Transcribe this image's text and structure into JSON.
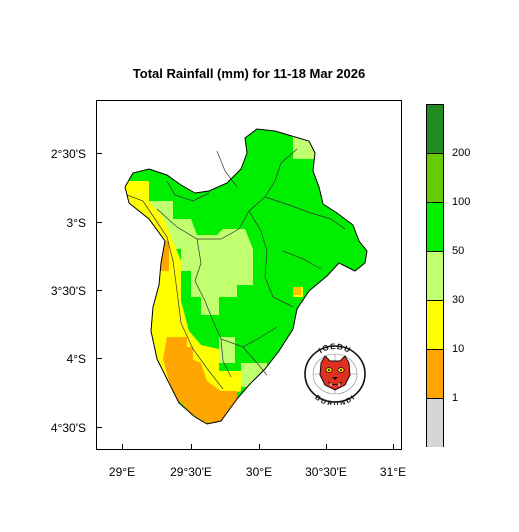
{
  "title": "Total Rainfall (mm) for 11-18 Mar 2026",
  "x_axis": {
    "ticks": [
      {
        "value": 29.0,
        "label": "29°E"
      },
      {
        "value": 29.5,
        "label": "29°30'E"
      },
      {
        "value": 30.0,
        "label": "30°E"
      },
      {
        "value": 30.5,
        "label": "30°30'E"
      },
      {
        "value": 31.0,
        "label": "31°E"
      }
    ]
  },
  "y_axis": {
    "ticks": [
      {
        "value": -2.5,
        "label": "2°30'S"
      },
      {
        "value": -3.0,
        "label": "3°S"
      },
      {
        "value": -3.5,
        "label": "3°30'S"
      },
      {
        "value": -4.0,
        "label": "4°S"
      },
      {
        "value": -4.5,
        "label": "4°30'S"
      }
    ]
  },
  "legend": {
    "bins": [
      {
        "color": "#d6d6d6",
        "label": "1"
      },
      {
        "color": "#ffa500",
        "label": "10"
      },
      {
        "color": "#ffff00",
        "label": "30"
      },
      {
        "color": "#c0ff70",
        "label": "50"
      },
      {
        "color": "#00ee00",
        "label": "100"
      },
      {
        "color": "#66cc00",
        "label": "200"
      },
      {
        "color": "#228b22",
        "label": ""
      }
    ]
  },
  "logo": {
    "text_top": "IGEBU",
    "text_bottom": "BURUNDI",
    "icon": "leopard-head-icon",
    "colors": {
      "head": "#e03020",
      "ring": "#111111"
    }
  },
  "regions": [
    {
      "name": "low-rainfall-south",
      "category": "10",
      "color": "#ffa500"
    },
    {
      "name": "western-corridor",
      "category": "30",
      "color": "#ffff00"
    },
    {
      "name": "central-plateau",
      "category": "50",
      "color": "#c0ff70"
    },
    {
      "name": "north-and-east",
      "category": "100",
      "color": "#00ee00"
    }
  ]
}
